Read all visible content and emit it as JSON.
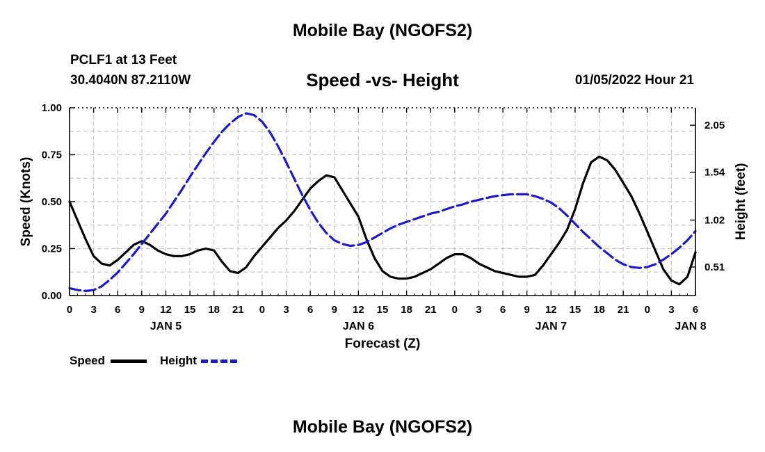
{
  "title": "Mobile Bay (NGOFS2)",
  "station": "PCLF1 at 13 Feet",
  "coordinates": "30.4040N  87.2110W",
  "subtitle": "Speed -vs- Height",
  "datetime": "01/05/2022 Hour 21",
  "footer_title": "Mobile Bay (NGOFS2)",
  "legend": {
    "speed_label": "Speed",
    "height_label": "Height"
  },
  "colors": {
    "speed": "#000000",
    "height": "#1a1acc",
    "grid": "#c8c8c8"
  },
  "chart_data": {
    "type": "line",
    "xlabel": "Forecast (Z)",
    "ylabel": "Speed (Knots)",
    "y2label": "Height (feet)",
    "xlim": [
      0,
      78
    ],
    "ylim": [
      0,
      1.0
    ],
    "y2lim": [
      0.2,
      2.24
    ],
    "x_ticks": [
      0,
      3,
      6,
      9,
      12,
      15,
      18,
      21,
      24,
      27,
      30,
      33,
      36,
      39,
      42,
      45,
      48,
      51,
      54,
      57,
      60,
      63,
      66,
      69,
      72,
      75,
      78
    ],
    "x_tick_labels": [
      "0",
      "3",
      "6",
      "9",
      "12",
      "15",
      "18",
      "21",
      "0",
      "3",
      "6",
      "9",
      "12",
      "15",
      "18",
      "21",
      "0",
      "3",
      "6",
      "9",
      "12",
      "15",
      "18",
      "21",
      "0",
      "3",
      "6"
    ],
    "y_ticks": [
      0.0,
      0.25,
      0.5,
      0.75,
      1.0
    ],
    "y_tick_labels": [
      "0.00",
      "0.25",
      "0.50",
      "0.75",
      "1.00"
    ],
    "y2_ticks": [
      0.51,
      1.02,
      1.54,
      2.05
    ],
    "y2_tick_labels": [
      "0.51",
      "1.02",
      "1.54",
      "2.05"
    ],
    "date_labels": [
      {
        "x": 12,
        "label": "JAN 5"
      },
      {
        "x": 36,
        "label": "JAN 6"
      },
      {
        "x": 60,
        "label": "JAN 7"
      },
      {
        "x": 78,
        "label": "JAN 8"
      }
    ],
    "series": [
      {
        "name": "Speed",
        "axis": "left",
        "x": [
          0,
          1,
          2,
          3,
          4,
          5,
          6,
          7,
          8,
          9,
          10,
          11,
          12,
          13,
          14,
          15,
          16,
          17,
          18,
          19,
          20,
          21,
          22,
          23,
          24,
          25,
          26,
          27,
          28,
          29,
          30,
          31,
          32,
          33,
          34,
          35,
          36,
          37,
          38,
          39,
          40,
          41,
          42,
          43,
          44,
          45,
          46,
          47,
          48,
          49,
          50,
          51,
          52,
          53,
          54,
          55,
          56,
          57,
          58,
          59,
          60,
          61,
          62,
          63,
          64,
          65,
          66,
          67,
          68,
          69,
          70,
          71,
          72,
          73,
          74,
          75,
          76,
          77,
          78
        ],
        "values": [
          0.5,
          0.4,
          0.3,
          0.21,
          0.17,
          0.16,
          0.19,
          0.23,
          0.27,
          0.29,
          0.27,
          0.24,
          0.22,
          0.21,
          0.21,
          0.22,
          0.24,
          0.25,
          0.24,
          0.18,
          0.13,
          0.12,
          0.15,
          0.21,
          0.26,
          0.31,
          0.36,
          0.4,
          0.45,
          0.51,
          0.57,
          0.61,
          0.64,
          0.63,
          0.56,
          0.49,
          0.42,
          0.3,
          0.2,
          0.13,
          0.1,
          0.09,
          0.09,
          0.1,
          0.12,
          0.14,
          0.17,
          0.2,
          0.22,
          0.22,
          0.2,
          0.17,
          0.15,
          0.13,
          0.12,
          0.11,
          0.1,
          0.1,
          0.11,
          0.16,
          0.22,
          0.28,
          0.35,
          0.46,
          0.6,
          0.71,
          0.74,
          0.72,
          0.67,
          0.6,
          0.53,
          0.44,
          0.34,
          0.24,
          0.14,
          0.08,
          0.06,
          0.1,
          0.23
        ]
      },
      {
        "name": "Height",
        "axis": "right",
        "x": [
          0,
          1,
          2,
          3,
          4,
          5,
          6,
          7,
          8,
          9,
          10,
          11,
          12,
          13,
          14,
          15,
          16,
          17,
          18,
          19,
          20,
          21,
          22,
          23,
          24,
          25,
          26,
          27,
          28,
          29,
          30,
          31,
          32,
          33,
          34,
          35,
          36,
          37,
          38,
          39,
          40,
          41,
          42,
          43,
          44,
          45,
          46,
          47,
          48,
          49,
          50,
          51,
          52,
          53,
          54,
          55,
          56,
          57,
          58,
          59,
          60,
          61,
          62,
          63,
          64,
          65,
          66,
          67,
          68,
          69,
          70,
          71,
          72,
          73,
          74,
          75,
          76,
          77,
          78
        ],
        "values": [
          0.28,
          0.26,
          0.25,
          0.26,
          0.3,
          0.37,
          0.45,
          0.55,
          0.65,
          0.76,
          0.87,
          0.98,
          1.09,
          1.22,
          1.35,
          1.49,
          1.62,
          1.75,
          1.87,
          1.98,
          2.07,
          2.14,
          2.18,
          2.16,
          2.09,
          1.97,
          1.82,
          1.65,
          1.47,
          1.29,
          1.13,
          0.99,
          0.88,
          0.8,
          0.76,
          0.74,
          0.75,
          0.78,
          0.83,
          0.88,
          0.93,
          0.97,
          1.0,
          1.03,
          1.06,
          1.09,
          1.11,
          1.14,
          1.17,
          1.19,
          1.22,
          1.24,
          1.26,
          1.28,
          1.29,
          1.3,
          1.3,
          1.3,
          1.28,
          1.25,
          1.21,
          1.15,
          1.07,
          0.98,
          0.89,
          0.81,
          0.73,
          0.66,
          0.59,
          0.54,
          0.51,
          0.5,
          0.51,
          0.54,
          0.59,
          0.65,
          0.72,
          0.8,
          0.9
        ]
      }
    ]
  }
}
